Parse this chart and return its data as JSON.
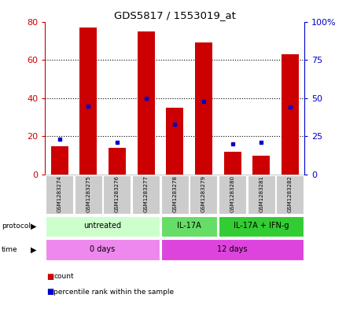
{
  "title": "GDS5817 / 1553019_at",
  "samples": [
    "GSM1283274",
    "GSM1283275",
    "GSM1283276",
    "GSM1283277",
    "GSM1283278",
    "GSM1283279",
    "GSM1283280",
    "GSM1283281",
    "GSM1283282"
  ],
  "counts": [
    15,
    77,
    14,
    75,
    35,
    69,
    12,
    10,
    63
  ],
  "percentile_ranks": [
    23,
    45,
    21,
    50,
    33,
    48,
    20,
    21,
    44
  ],
  "ylim_left": [
    0,
    80
  ],
  "ylim_right": [
    0,
    100
  ],
  "yticks_left": [
    0,
    20,
    40,
    60,
    80
  ],
  "ytick_labels_right": [
    "0",
    "25",
    "50",
    "75",
    "100%"
  ],
  "bar_color": "#cc0000",
  "dot_color": "#0000cc",
  "sample_box_color": "#cccccc",
  "protocol_groups": [
    {
      "label": "untreated",
      "start": 0,
      "end": 3,
      "color": "#ccffcc"
    },
    {
      "label": "IL-17A",
      "start": 4,
      "end": 5,
      "color": "#66dd66"
    },
    {
      "label": "IL-17A + IFN-g",
      "start": 6,
      "end": 8,
      "color": "#33cc33"
    }
  ],
  "time_groups": [
    {
      "label": "0 days",
      "start": 0,
      "end": 3,
      "color": "#ee88ee"
    },
    {
      "label": "12 days",
      "start": 4,
      "end": 8,
      "color": "#dd44dd"
    }
  ],
  "legend_count_color": "#cc0000",
  "legend_percentile_color": "#0000cc"
}
